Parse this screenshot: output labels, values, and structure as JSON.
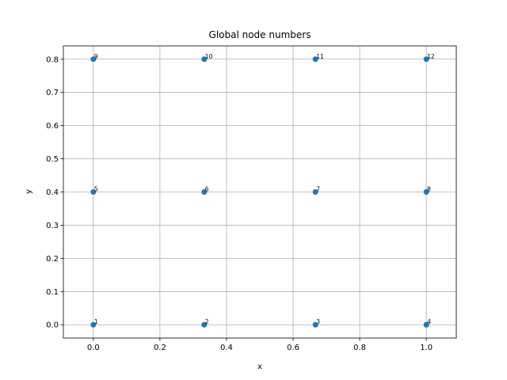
{
  "chart_data": {
    "type": "scatter",
    "title": "Global node numbers",
    "x_label": "x",
    "y_label": "y",
    "x": [
      0,
      0.333,
      0.667,
      1,
      0,
      0.333,
      0.667,
      1,
      0,
      0.333,
      0.667,
      1
    ],
    "values": [
      0,
      0,
      0,
      0,
      0.4,
      0.4,
      0.4,
      0.4,
      0.8,
      0.8,
      0.8,
      0.8
    ],
    "labels": [
      "1",
      "2",
      "3",
      "4",
      "5",
      "6",
      "7",
      "8",
      "9",
      "10",
      "11",
      "12"
    ],
    "color": "#1f77b4",
    "xlim": [
      -0.09,
      1.09
    ],
    "xticks": [
      {
        "value": 0,
        "label": "0.0"
      },
      0.2,
      0.4,
      0.6,
      0.8,
      {
        "value": 1,
        "label": "1.0"
      }
    ],
    "ylim": [
      -0.04,
      0.84
    ],
    "yticks": [
      {
        "value": 0,
        "label": "0.0"
      },
      0.1,
      0.2,
      0.3,
      0.4,
      0.5,
      0.6,
      0.7,
      0.8
    ],
    "grid": true
  }
}
